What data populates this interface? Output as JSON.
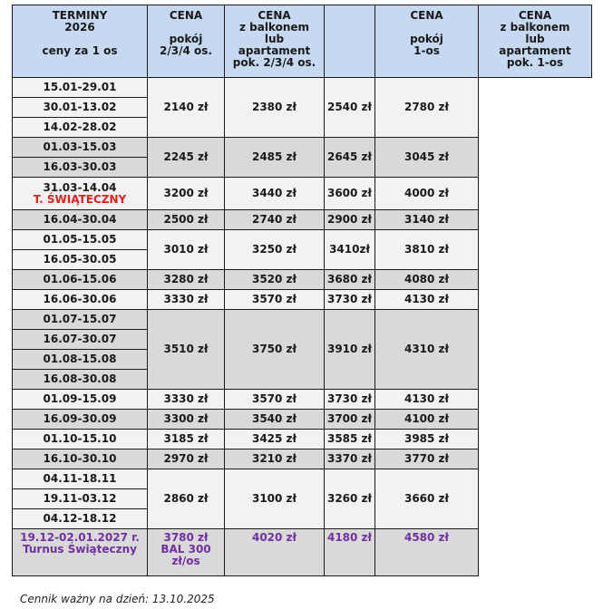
{
  "header": {
    "col1": [
      "TERMINY",
      "2026",
      "",
      "ceny za 1 os"
    ],
    "col2": [
      "CENA",
      "",
      "pokój",
      "2/3/4 os."
    ],
    "col3": [
      "CENA",
      "z balkonem",
      "lub",
      "apartament",
      "pok. 2/3/4 os."
    ],
    "col5": [
      "CENA",
      "",
      "pokój",
      "1-os"
    ],
    "col6": [
      "CENA",
      "z balkonem",
      "lub",
      "apartament",
      "pok. 1-os"
    ]
  },
  "groups": [
    {
      "dates": [
        "15.01-29.01",
        "30.01-13.02",
        "14.02-28.02"
      ],
      "prices": [
        "2140 zł",
        "2380 zł",
        "2540 zł",
        "2780 zł"
      ]
    },
    {
      "dates": [
        "01.03-15.03",
        "16.03-30.03"
      ],
      "prices": [
        "2245 zł",
        "2485 zł",
        "2645 zł",
        "3045 zł"
      ]
    },
    {
      "dates": [
        "31.03-14.04"
      ],
      "note": "T. ŚWIĄTECZNY",
      "prices": [
        "3200 zł",
        "3440 zł",
        "3600 zł",
        "4000 zł"
      ]
    },
    {
      "dates": [
        "16.04-30.04"
      ],
      "prices": [
        "2500 zł",
        "2740 zł",
        "2900 zł",
        "3140 zł"
      ]
    },
    {
      "dates": [
        "01.05-15.05",
        "16.05-30.05"
      ],
      "prices": [
        "3010 zł",
        "3250 zł",
        "3410zł",
        "3810 zł"
      ]
    },
    {
      "dates": [
        "01.06-15.06"
      ],
      "prices": [
        "3280 zł",
        "3520 zł",
        "3680 zł",
        "4080 zł"
      ]
    },
    {
      "dates": [
        "16.06-30.06"
      ],
      "prices": [
        "3330 zł",
        "3570 zł",
        "3730 zł",
        "4130 zł"
      ]
    },
    {
      "dates": [
        "01.07-15.07",
        "16.07-30.07",
        "01.08-15.08",
        "16.08-30.08"
      ],
      "prices": [
        "3510 zł",
        "3750 zł",
        "3910 zł",
        "4310 zł"
      ]
    },
    {
      "dates": [
        "01.09-15.09"
      ],
      "prices": [
        "3330 zł",
        "3570 zł",
        "3730 zł",
        "4130 zł"
      ]
    },
    {
      "dates": [
        "16.09-30.09"
      ],
      "prices": [
        "3300 zł",
        "3540 zł",
        "3700 zł",
        "4100 zł"
      ]
    },
    {
      "dates": [
        "01.10-15.10"
      ],
      "prices": [
        "3185 zł",
        "3425 zł",
        "3585 zł",
        "3985 zł"
      ]
    },
    {
      "dates": [
        "16.10-30.10"
      ],
      "prices": [
        "2970 zł",
        "3210 zł",
        "3370 zł",
        "3770 zł"
      ]
    },
    {
      "dates": [
        "04.11-18.11",
        "19.11-03.12",
        "04.12-18.12"
      ],
      "prices": [
        "2860 zł",
        "3100 zł",
        "3260 zł",
        "3660 zł"
      ]
    },
    {
      "dates": [
        "19.12-02.01.2027 r."
      ],
      "note": "Turnus Świąteczny",
      "special": true,
      "prices": [
        "3780 zł\nBAL  300\nzł/os",
        "4020 zł",
        "4180 zł",
        "4580 zł"
      ]
    }
  ],
  "colors": {
    "header": "#c6d9f1",
    "light": "#f2f2f2",
    "grey": "#d9d9d9",
    "red": "#e0201f",
    "purple": "#7030a0"
  },
  "footer": "Cennik ważny na dzień: 13.10.2025"
}
